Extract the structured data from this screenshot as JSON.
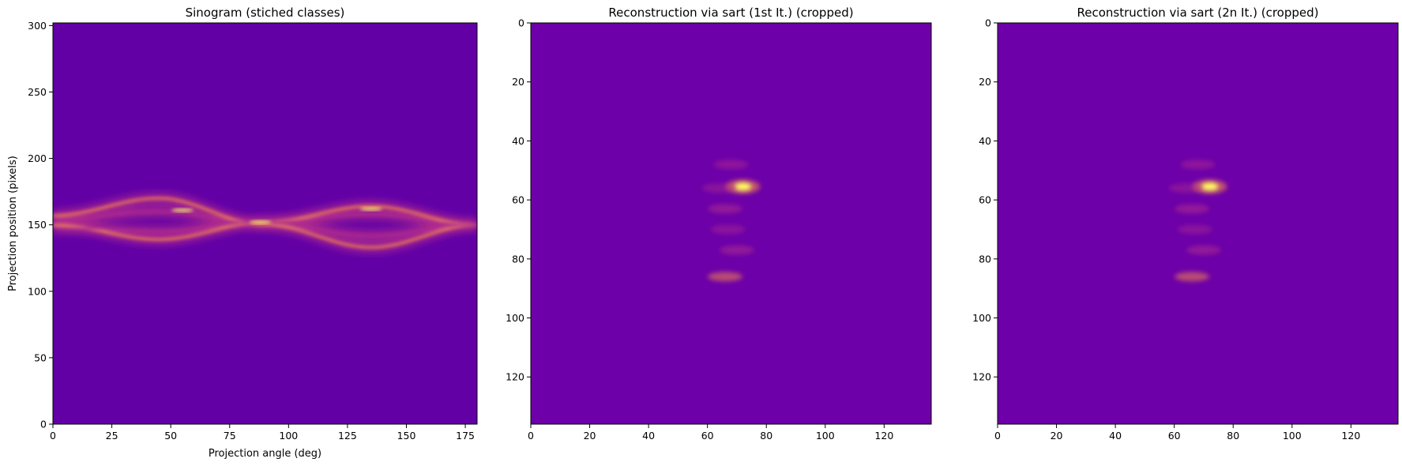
{
  "colors": {
    "background": "#6200a6",
    "background_recon": "#6d00a8",
    "glow_mid": "#b52f8c",
    "glow_hot": "#f48849",
    "glow_peak": "#fcfd62"
  },
  "colormap": "plasma",
  "chart_data": [
    {
      "type": "heatmap",
      "title": "Sinogram (stiched classes)",
      "xlabel": "Projection angle (deg)",
      "ylabel": "Projection position (pixels)",
      "xlim": [
        0,
        180
      ],
      "ylim": [
        0,
        302
      ],
      "y_direction": "up",
      "xticks": [
        0,
        25,
        50,
        75,
        100,
        125,
        150,
        175
      ],
      "yticks": [
        0,
        50,
        100,
        150,
        200,
        250,
        300
      ],
      "grid": false,
      "features": [
        {
          "kind": "band",
          "name": "upper sinusoid",
          "x": [
            0,
            45,
            90,
            135,
            180
          ],
          "y": [
            157,
            170,
            150,
            133,
            150
          ]
        },
        {
          "kind": "band",
          "name": "lower sinusoid",
          "x": [
            0,
            45,
            90,
            135,
            180
          ],
          "y": [
            150,
            139,
            152,
            164,
            150
          ]
        },
        {
          "kind": "band",
          "name": "inner upper",
          "x": [
            0,
            45,
            90,
            135,
            180
          ],
          "y": [
            154,
            160,
            151,
            142,
            150
          ]
        },
        {
          "kind": "band",
          "name": "inner lower",
          "x": [
            0,
            45,
            90,
            135,
            180
          ],
          "y": [
            148,
            145,
            152,
            158,
            150
          ]
        }
      ]
    },
    {
      "type": "heatmap",
      "title": "Reconstruction via sart (1st It.) (cropped)",
      "xlabel": "",
      "ylabel": "",
      "xlim": [
        0,
        136
      ],
      "ylim": [
        136,
        0
      ],
      "y_direction": "down",
      "xticks": [
        0,
        20,
        40,
        60,
        80,
        100,
        120
      ],
      "yticks": [
        0,
        20,
        40,
        60,
        80,
        100,
        120
      ],
      "grid": false,
      "features": [
        {
          "kind": "spot",
          "x": 72,
          "y": 55.5,
          "intensity": 1.0
        },
        {
          "kind": "spot",
          "x": 68,
          "y": 48,
          "intensity": 0.45
        },
        {
          "kind": "spot",
          "x": 64,
          "y": 56,
          "intensity": 0.4
        },
        {
          "kind": "spot",
          "x": 66,
          "y": 63,
          "intensity": 0.5
        },
        {
          "kind": "spot",
          "x": 67,
          "y": 70,
          "intensity": 0.4
        },
        {
          "kind": "spot",
          "x": 70,
          "y": 77,
          "intensity": 0.5
        },
        {
          "kind": "spot",
          "x": 66,
          "y": 86,
          "intensity": 0.55
        }
      ]
    },
    {
      "type": "heatmap",
      "title": "Reconstruction via sart (2n It.) (cropped)",
      "xlabel": "",
      "ylabel": "",
      "xlim": [
        0,
        136
      ],
      "ylim": [
        136,
        0
      ],
      "y_direction": "down",
      "xticks": [
        0,
        20,
        40,
        60,
        80,
        100,
        120
      ],
      "yticks": [
        0,
        20,
        40,
        60,
        80,
        100,
        120
      ],
      "grid": false,
      "features": [
        {
          "kind": "spot",
          "x": 72,
          "y": 55.5,
          "intensity": 1.0
        },
        {
          "kind": "spot",
          "x": 68,
          "y": 48,
          "intensity": 0.45
        },
        {
          "kind": "spot",
          "x": 64,
          "y": 56,
          "intensity": 0.4
        },
        {
          "kind": "spot",
          "x": 66,
          "y": 63,
          "intensity": 0.5
        },
        {
          "kind": "spot",
          "x": 67,
          "y": 70,
          "intensity": 0.4
        },
        {
          "kind": "spot",
          "x": 70,
          "y": 77,
          "intensity": 0.5
        },
        {
          "kind": "spot",
          "x": 66,
          "y": 86,
          "intensity": 0.55
        }
      ]
    }
  ]
}
